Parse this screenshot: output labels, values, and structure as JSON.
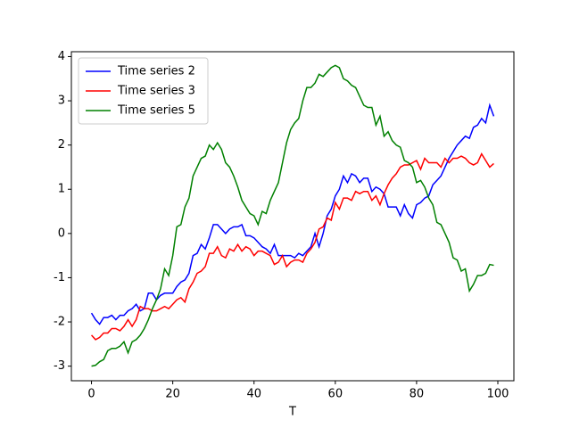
{
  "chart_data": {
    "type": "line",
    "xlabel": "T",
    "x": [
      0,
      1,
      2,
      3,
      4,
      5,
      6,
      7,
      8,
      9,
      10,
      11,
      12,
      13,
      14,
      15,
      16,
      17,
      18,
      19,
      20,
      21,
      22,
      23,
      24,
      25,
      26,
      27,
      28,
      29,
      30,
      31,
      32,
      33,
      34,
      35,
      36,
      37,
      38,
      39,
      40,
      41,
      42,
      43,
      44,
      45,
      46,
      47,
      48,
      49,
      50,
      51,
      52,
      53,
      54,
      55,
      56,
      57,
      58,
      59,
      60,
      61,
      62,
      63,
      64,
      65,
      66,
      67,
      68,
      69,
      70,
      71,
      72,
      73,
      74,
      75,
      76,
      77,
      78,
      79,
      80,
      81,
      82,
      83,
      84,
      85,
      86,
      87,
      88,
      89,
      90,
      91,
      92,
      93,
      94,
      95,
      96,
      97,
      98,
      99
    ],
    "series": [
      {
        "name": "Time series 2",
        "color": "#0000ff",
        "values": [
          -1.8,
          -1.95,
          -2.05,
          -1.9,
          -1.9,
          -1.85,
          -1.95,
          -1.85,
          -1.85,
          -1.75,
          -1.7,
          -1.6,
          -1.75,
          -1.7,
          -1.35,
          -1.35,
          -1.5,
          -1.4,
          -1.35,
          -1.35,
          -1.35,
          -1.2,
          -1.1,
          -1.05,
          -0.9,
          -0.5,
          -0.45,
          -0.25,
          -0.35,
          -0.1,
          0.2,
          0.2,
          0.1,
          0,
          0.1,
          0.15,
          0.15,
          0.2,
          -0.05,
          -0.05,
          -0.1,
          -0.2,
          -0.3,
          -0.35,
          -0.45,
          -0.25,
          -0.5,
          -0.5,
          -0.5,
          -0.5,
          -0.55,
          -0.45,
          -0.5,
          -0.4,
          -0.3,
          0,
          -0.3,
          0,
          0.4,
          0.55,
          0.85,
          1.0,
          1.3,
          1.15,
          1.35,
          1.3,
          1.15,
          1.25,
          1.25,
          0.95,
          1.05,
          1.0,
          0.9,
          0.6,
          0.6,
          0.6,
          0.4,
          0.65,
          0.45,
          0.35,
          0.65,
          0.7,
          0.8,
          0.85,
          1.1,
          1.2,
          1.3,
          1.5,
          1.7,
          1.85,
          2.0,
          2.1,
          2.2,
          2.15,
          2.4,
          2.45,
          2.6,
          2.5,
          2.9,
          2.65
        ]
      },
      {
        "name": "Time series 3",
        "color": "#ff0000",
        "values": [
          -2.3,
          -2.4,
          -2.35,
          -2.25,
          -2.25,
          -2.15,
          -2.15,
          -2.2,
          -2.1,
          -1.95,
          -2.1,
          -1.95,
          -1.65,
          -1.7,
          -1.7,
          -1.75,
          -1.75,
          -1.7,
          -1.65,
          -1.7,
          -1.6,
          -1.5,
          -1.45,
          -1.55,
          -1.25,
          -1.1,
          -0.9,
          -0.85,
          -0.75,
          -0.45,
          -0.45,
          -0.3,
          -0.5,
          -0.55,
          -0.35,
          -0.4,
          -0.25,
          -0.4,
          -0.3,
          -0.35,
          -0.5,
          -0.4,
          -0.4,
          -0.45,
          -0.5,
          -0.7,
          -0.65,
          -0.5,
          -0.75,
          -0.65,
          -0.6,
          -0.6,
          -0.65,
          -0.45,
          -0.35,
          -0.2,
          0.1,
          0.15,
          0.35,
          0.3,
          0.7,
          0.55,
          0.8,
          0.8,
          0.75,
          0.95,
          0.9,
          0.95,
          0.95,
          0.75,
          0.85,
          0.65,
          0.9,
          1.1,
          1.25,
          1.35,
          1.5,
          1.55,
          1.55,
          1.6,
          1.65,
          1.45,
          1.7,
          1.6,
          1.6,
          1.6,
          1.5,
          1.7,
          1.6,
          1.7,
          1.7,
          1.75,
          1.7,
          1.6,
          1.55,
          1.6,
          1.8,
          1.65,
          1.5,
          1.58
        ]
      },
      {
        "name": "Time series 5",
        "color": "#008000",
        "values": [
          -3.0,
          -2.98,
          -2.9,
          -2.85,
          -2.65,
          -2.6,
          -2.6,
          -2.55,
          -2.45,
          -2.7,
          -2.45,
          -2.4,
          -2.3,
          -2.15,
          -1.95,
          -1.7,
          -1.5,
          -1.25,
          -0.8,
          -0.95,
          -0.5,
          0.15,
          0.2,
          0.6,
          0.8,
          1.3,
          1.5,
          1.7,
          1.75,
          2.0,
          1.9,
          2.05,
          1.9,
          1.6,
          1.5,
          1.3,
          1.05,
          0.75,
          0.6,
          0.45,
          0.4,
          0.2,
          0.5,
          0.45,
          0.75,
          0.95,
          1.15,
          1.6,
          2.05,
          2.35,
          2.5,
          2.6,
          3.0,
          3.3,
          3.3,
          3.4,
          3.6,
          3.55,
          3.65,
          3.75,
          3.8,
          3.75,
          3.5,
          3.45,
          3.35,
          3.3,
          3.1,
          2.9,
          2.85,
          2.85,
          2.45,
          2.65,
          2.2,
          2.3,
          2.1,
          2.0,
          1.95,
          1.65,
          1.6,
          1.5,
          1.15,
          1.2,
          1.05,
          0.8,
          0.65,
          0.25,
          0.2,
          0.0,
          -0.2,
          -0.55,
          -0.6,
          -0.85,
          -0.8,
          -1.3,
          -1.15,
          -0.95,
          -0.95,
          -0.9,
          -0.7,
          -0.72
        ]
      }
    ],
    "xlim": [
      -4.95,
      103.95
    ],
    "xticks": [
      0,
      20,
      40,
      60,
      80,
      100
    ],
    "ylim": [
      -3.33,
      4.11
    ],
    "yticks": [
      -3,
      -2,
      -1,
      0,
      1,
      2,
      3,
      4
    ],
    "legend": "upper left"
  }
}
